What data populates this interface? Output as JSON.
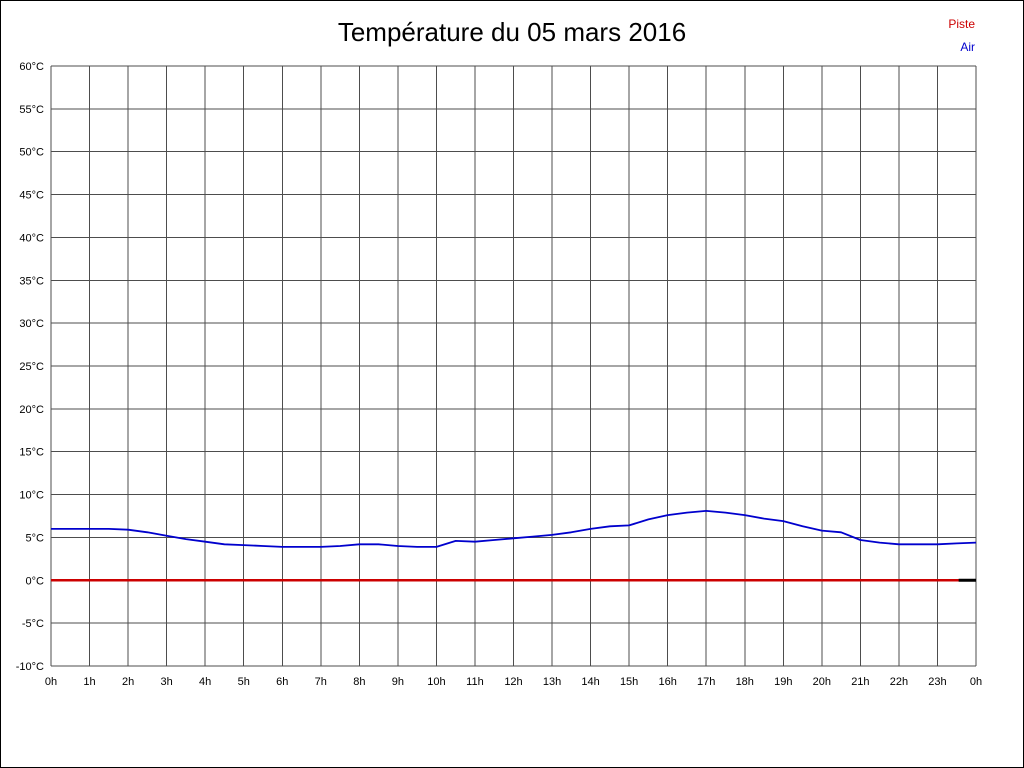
{
  "title": "Température du 05 mars 2016",
  "legend": {
    "piste_label": "Piste",
    "air_label": "Air"
  },
  "colors": {
    "piste": "#cc0000",
    "air": "#0000cd",
    "grid": "#4d4d4d",
    "text": "#000000",
    "background": "#ffffff"
  },
  "chart_data": {
    "type": "line",
    "title": "Température du 05 mars 2016",
    "grid": true,
    "legend_position": "top-right",
    "xlim": [
      0,
      24
    ],
    "ylim": [
      -10,
      60
    ],
    "y_step": 5,
    "x_ticks": [
      "0h",
      "1h",
      "2h",
      "3h",
      "4h",
      "5h",
      "6h",
      "7h",
      "8h",
      "9h",
      "10h",
      "11h",
      "12h",
      "13h",
      "14h",
      "15h",
      "16h",
      "17h",
      "18h",
      "19h",
      "20h",
      "21h",
      "22h",
      "23h",
      "0h"
    ],
    "y_ticks": [
      "60°C",
      "55°C",
      "50°C",
      "45°C",
      "40°C",
      "35°C",
      "30°C",
      "25°C",
      "20°C",
      "15°C",
      "10°C",
      "5°C",
      "0°C",
      "-5°C",
      "-10°C"
    ],
    "series": [
      {
        "name": "Piste",
        "color": "#cc0000",
        "width": 2.5,
        "x": [
          0,
          24
        ],
        "values": [
          0,
          0
        ]
      },
      {
        "name": "Air",
        "color": "#0000cd",
        "width": 1.8,
        "x": [
          0,
          0.5,
          1,
          1.5,
          2,
          2.5,
          3,
          3.5,
          4,
          4.5,
          5,
          5.5,
          6,
          6.5,
          7,
          7.5,
          8,
          8.5,
          9,
          9.5,
          10,
          10.5,
          11,
          11.5,
          12,
          12.5,
          13,
          13.5,
          14,
          14.5,
          15,
          15.5,
          16,
          16.5,
          17,
          17.5,
          18,
          18.5,
          19,
          19.5,
          20,
          20.5,
          21,
          21.5,
          22,
          22.5,
          23,
          23.5,
          24
        ],
        "values": [
          6.0,
          6.0,
          6.0,
          6.0,
          5.9,
          5.6,
          5.2,
          4.8,
          4.5,
          4.2,
          4.1,
          4.0,
          3.9,
          3.9,
          3.9,
          4.0,
          4.2,
          4.2,
          4.0,
          3.9,
          3.9,
          4.6,
          4.5,
          4.7,
          4.9,
          5.1,
          5.3,
          5.6,
          6.0,
          6.3,
          6.4,
          7.1,
          7.6,
          7.9,
          8.1,
          7.9,
          7.6,
          7.2,
          6.9,
          6.3,
          5.8,
          5.6,
          4.7,
          4.4,
          4.2,
          4.2,
          4.2,
          4.3,
          4.4
        ]
      }
    ],
    "zero_end_segment": {
      "x": [
        23.55,
        24
      ],
      "value": 0,
      "color": "#000000",
      "width": 3
    }
  }
}
